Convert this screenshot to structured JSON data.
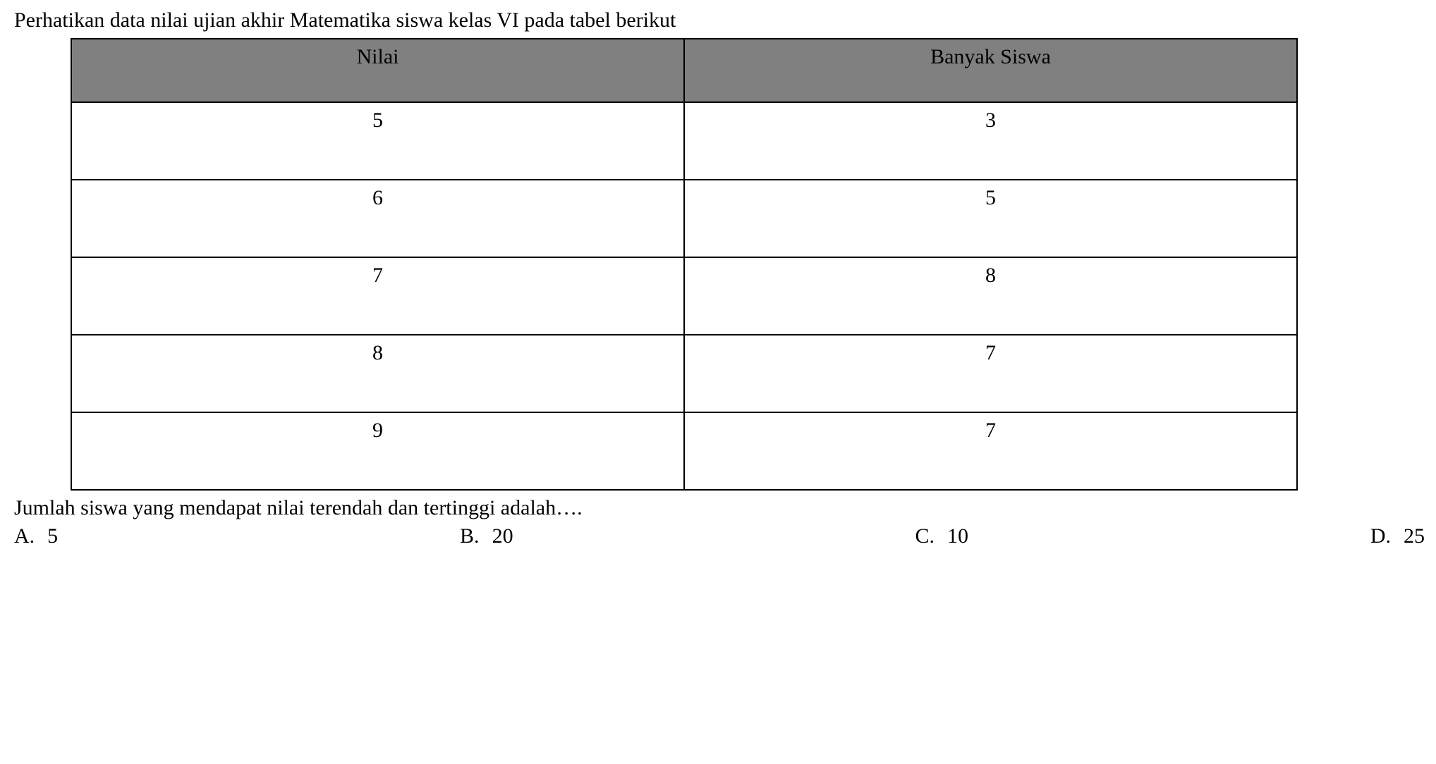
{
  "question": {
    "intro": "Perhatikan data nilai ujian akhir Matematika siswa kelas VI pada tabel berikut",
    "prompt": "Jumlah siswa yang mendapat nilai terendah dan tertinggi adalah…."
  },
  "table": {
    "columns": [
      "Nilai",
      "Banyak Siswa"
    ],
    "rows": [
      [
        "5",
        "3"
      ],
      [
        "6",
        "5"
      ],
      [
        "7",
        "8"
      ],
      [
        "8",
        "7"
      ],
      [
        "9",
        "7"
      ]
    ],
    "header_bg": "#808080",
    "border_color": "#000000"
  },
  "options": [
    {
      "letter": "A.",
      "value": "5"
    },
    {
      "letter": "B.",
      "value": "20"
    },
    {
      "letter": "C.",
      "value": "10"
    },
    {
      "letter": "D.",
      "value": "25"
    }
  ]
}
